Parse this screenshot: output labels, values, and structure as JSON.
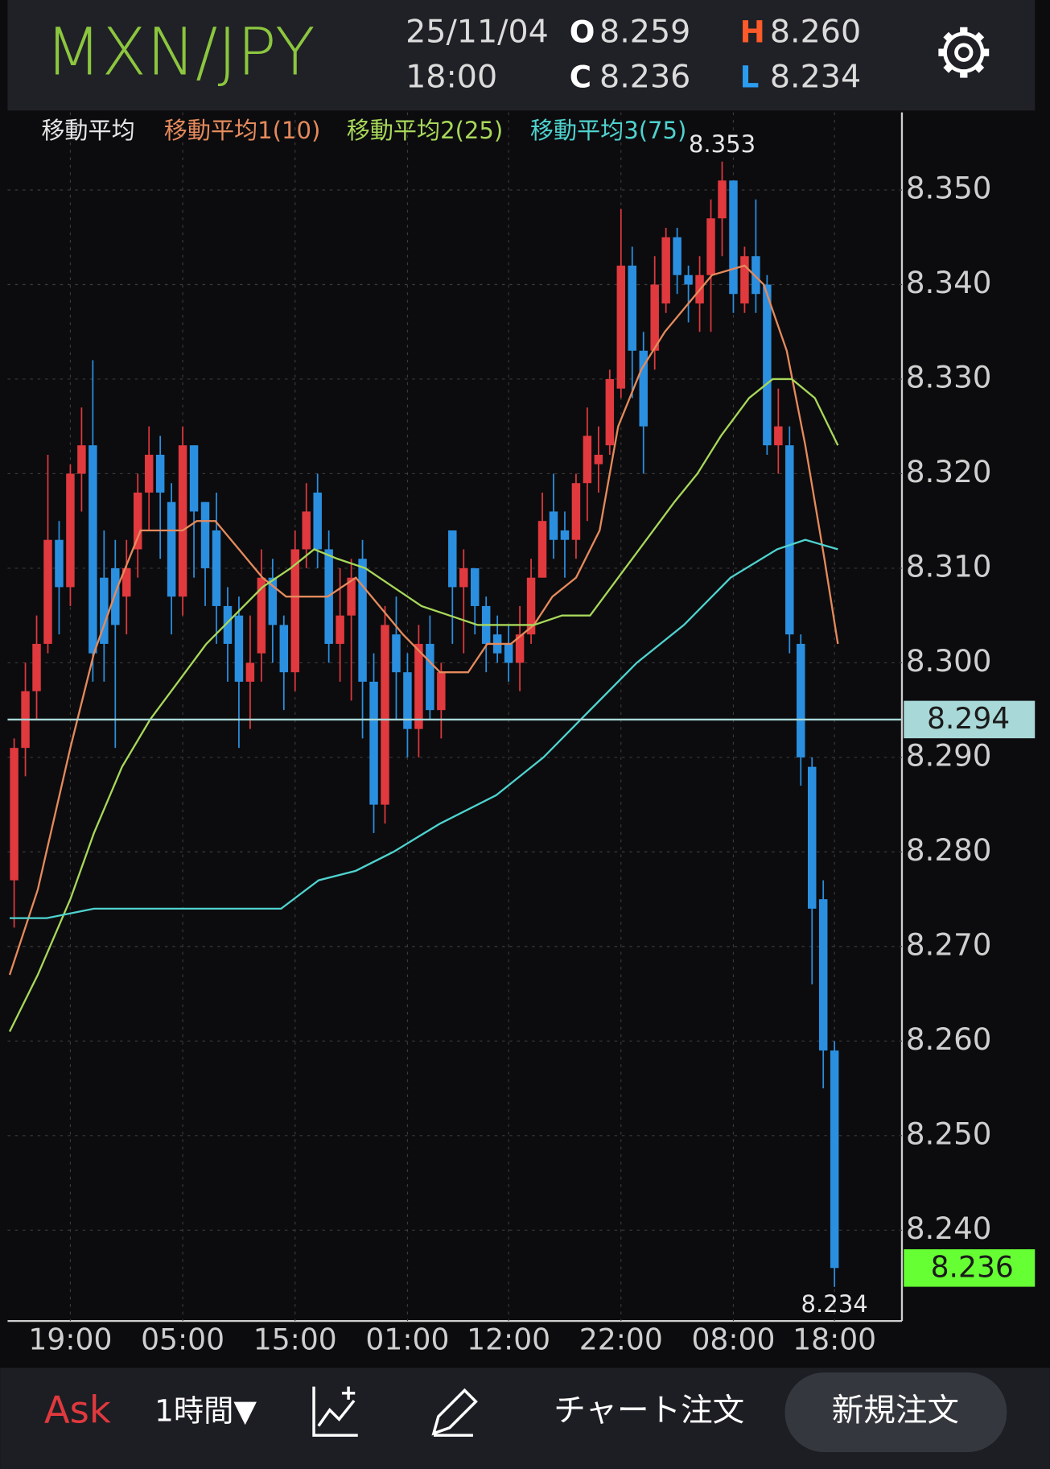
{
  "header": {
    "symbol": "MXN/JPY",
    "date": "25/11/04",
    "time": "18:00",
    "open_label": "O",
    "open": "8.259",
    "high_label": "H",
    "high": "8.260",
    "close_label": "C",
    "close": "8.236",
    "low_label": "L",
    "low": "8.234"
  },
  "chart_data": {
    "type": "candlestick",
    "legend_title": "移動平均",
    "up_color": "#e0393e",
    "down_color": "#2b8fe0",
    "grid": true,
    "categories": [
      null,
      null,
      null,
      null,
      null,
      "19:00",
      null,
      null,
      null,
      null,
      null,
      null,
      null,
      null,
      null,
      "05:00",
      null,
      null,
      null,
      null,
      null,
      null,
      null,
      null,
      null,
      "15:00",
      null,
      null,
      null,
      null,
      null,
      null,
      null,
      null,
      null,
      "01:00",
      null,
      null,
      null,
      null,
      null,
      null,
      null,
      null,
      "12:00",
      null,
      null,
      null,
      null,
      null,
      null,
      null,
      null,
      null,
      "22:00",
      null,
      null,
      null,
      null,
      null,
      null,
      null,
      null,
      null,
      "08:00",
      null,
      null,
      null,
      null,
      null,
      null,
      null,
      null,
      "18:00"
    ],
    "open": [
      8.277,
      8.291,
      8.297,
      8.302,
      8.313,
      8.308,
      8.32,
      8.323,
      8.309,
      8.31,
      8.307,
      8.312,
      8.318,
      8.322,
      8.317,
      8.307,
      8.323,
      8.317,
      8.314,
      8.306,
      8.305,
      8.298,
      8.301,
      8.309,
      8.304,
      8.299,
      8.312,
      8.318,
      8.312,
      8.302,
      8.305,
      8.311,
      8.298,
      8.285,
      8.303,
      8.299,
      8.293,
      8.302,
      8.295,
      8.314,
      8.308,
      8.31,
      8.306,
      8.303,
      8.302,
      8.3,
      8.303,
      8.309,
      8.316,
      8.314,
      8.313,
      8.319,
      8.321,
      8.323,
      8.329,
      8.342,
      8.333,
      8.333,
      8.338,
      8.345,
      8.341,
      8.338,
      8.341,
      8.347,
      8.351,
      8.338,
      8.343,
      8.34,
      8.323,
      8.323,
      8.302,
      8.289,
      8.275,
      8.259
    ],
    "high": [
      8.292,
      8.3,
      8.305,
      8.322,
      8.315,
      8.321,
      8.327,
      8.332,
      8.314,
      8.313,
      8.313,
      8.32,
      8.325,
      8.324,
      8.319,
      8.325,
      8.323,
      8.317,
      8.318,
      8.308,
      8.307,
      8.305,
      8.312,
      8.311,
      8.305,
      8.314,
      8.319,
      8.32,
      8.314,
      8.31,
      8.311,
      8.313,
      8.301,
      8.306,
      8.307,
      8.301,
      8.304,
      8.305,
      8.3,
      8.314,
      8.312,
      8.31,
      8.307,
      8.305,
      8.304,
      8.306,
      8.311,
      8.318,
      8.32,
      8.316,
      8.32,
      8.327,
      8.325,
      8.331,
      8.348,
      8.344,
      8.335,
      8.343,
      8.346,
      8.346,
      8.342,
      8.343,
      8.349,
      8.353,
      8.351,
      8.344,
      8.349,
      8.341,
      8.329,
      8.325,
      8.303,
      8.29,
      8.277,
      8.26
    ],
    "low": [
      8.272,
      8.288,
      8.294,
      8.301,
      8.303,
      8.306,
      8.316,
      8.298,
      8.298,
      8.291,
      8.303,
      8.309,
      8.314,
      8.311,
      8.303,
      8.305,
      8.309,
      8.306,
      8.302,
      8.298,
      8.291,
      8.293,
      8.298,
      8.3,
      8.295,
      8.297,
      8.31,
      8.31,
      8.3,
      8.298,
      8.296,
      8.292,
      8.282,
      8.283,
      8.294,
      8.29,
      8.29,
      8.294,
      8.292,
      8.302,
      8.301,
      8.303,
      8.299,
      8.3,
      8.298,
      8.297,
      8.302,
      8.309,
      8.311,
      8.309,
      8.311,
      8.315,
      8.318,
      8.322,
      8.328,
      8.328,
      8.32,
      8.331,
      8.337,
      8.339,
      8.336,
      8.335,
      8.335,
      8.343,
      8.337,
      8.337,
      8.337,
      8.322,
      8.32,
      8.301,
      8.287,
      8.266,
      8.255,
      8.234
    ],
    "close": [
      8.291,
      8.297,
      8.302,
      8.313,
      8.308,
      8.32,
      8.323,
      8.301,
      8.302,
      8.304,
      8.31,
      8.318,
      8.322,
      8.318,
      8.307,
      8.323,
      8.316,
      8.31,
      8.306,
      8.302,
      8.298,
      8.3,
      8.309,
      8.304,
      8.299,
      8.312,
      8.316,
      8.312,
      8.302,
      8.305,
      8.309,
      8.298,
      8.285,
      8.304,
      8.299,
      8.293,
      8.302,
      8.295,
      8.299,
      8.308,
      8.31,
      8.306,
      8.302,
      8.301,
      8.3,
      8.303,
      8.309,
      8.315,
      8.313,
      8.313,
      8.319,
      8.324,
      8.322,
      8.33,
      8.342,
      8.333,
      8.325,
      8.34,
      8.345,
      8.341,
      8.34,
      8.341,
      8.347,
      8.351,
      8.339,
      8.343,
      8.339,
      8.323,
      8.325,
      8.303,
      8.29,
      8.274,
      8.259,
      8.236
    ],
    "series": [
      {
        "name": "移動平均1(10)",
        "color": "#e58a5c",
        "x": [
          -0.4,
          2.1,
          5,
          7.1,
          9.2,
          11.25,
          12.9,
          15,
          16.25,
          17.9,
          20,
          22.1,
          24.2,
          26.25,
          27.9,
          30.4,
          32.5,
          34.6,
          37.9,
          40.4,
          42.1,
          44.2,
          46.25,
          47.9,
          50,
          52.1,
          53.75,
          55.8,
          57.9,
          60,
          62.1,
          65,
          66.7,
          68.75,
          70.4,
          72.1,
          73.3
        ],
        "values": [
          8.267,
          8.276,
          8.291,
          8.301,
          8.308,
          8.314,
          8.314,
          8.314,
          8.315,
          8.315,
          8.312,
          8.309,
          8.307,
          8.307,
          8.307,
          8.309,
          8.306,
          8.303,
          8.299,
          8.299,
          8.302,
          8.302,
          8.304,
          8.307,
          8.309,
          8.314,
          8.325,
          8.331,
          8.335,
          8.338,
          8.341,
          8.342,
          8.34,
          8.333,
          8.323,
          8.311,
          8.302
        ]
      },
      {
        "name": "移動平均2(25)",
        "color": "#a8d85a",
        "x": [
          -0.4,
          2.1,
          5,
          7.1,
          9.6,
          12.1,
          14.6,
          17.1,
          19.6,
          22.1,
          24.6,
          26.7,
          28.75,
          31.25,
          33.75,
          36.25,
          38.75,
          41.25,
          43.75,
          46.25,
          48.75,
          51.25,
          53.75,
          56.25,
          58.75,
          60.8,
          62.9,
          65.4,
          67.5,
          69.2,
          71.25,
          73.3
        ],
        "values": [
          8.261,
          8.267,
          8.275,
          8.282,
          8.289,
          8.294,
          8.298,
          8.302,
          8.305,
          8.308,
          8.31,
          8.312,
          8.311,
          8.31,
          8.308,
          8.306,
          8.305,
          8.304,
          8.304,
          8.304,
          8.305,
          8.305,
          8.309,
          8.313,
          8.317,
          8.32,
          8.324,
          8.328,
          8.33,
          8.33,
          8.328,
          8.323
        ]
      },
      {
        "name": "移動平均3(75)",
        "color": "#4fd3cf",
        "x": [
          -0.4,
          2.9,
          7.1,
          11.25,
          17.1,
          20.8,
          23.75,
          27.1,
          30.4,
          33.75,
          37.9,
          42.9,
          47.1,
          51.25,
          55.4,
          59.6,
          63.75,
          67.9,
          70.4,
          73.3
        ],
        "values": [
          8.273,
          8.273,
          8.274,
          8.274,
          8.274,
          8.274,
          8.274,
          8.277,
          8.278,
          8.28,
          8.283,
          8.286,
          8.29,
          8.295,
          8.3,
          8.304,
          8.309,
          8.312,
          8.313,
          8.312
        ]
      }
    ],
    "ylim": [
      8.2304,
      8.3582
    ],
    "yticks": [
      {
        "value": 8.24,
        "label": "8.240"
      },
      {
        "value": 8.25,
        "label": "8.250"
      },
      {
        "value": 8.26,
        "label": "8.260"
      },
      {
        "value": 8.27,
        "label": "8.270"
      },
      {
        "value": 8.28,
        "label": "8.280"
      },
      {
        "value": 8.29,
        "label": "8.290"
      },
      {
        "value": 8.3,
        "label": "8.300"
      },
      {
        "value": 8.31,
        "label": "8.310"
      },
      {
        "value": 8.32,
        "label": "8.320"
      },
      {
        "value": 8.33,
        "label": "8.330"
      },
      {
        "value": 8.34,
        "label": "8.340"
      },
      {
        "value": 8.35,
        "label": "8.350"
      }
    ],
    "reference_line": {
      "value": 8.294,
      "label": "8.294",
      "color": "#a9d8d8"
    },
    "current_price": {
      "value": 8.236,
      "label": "8.236",
      "color": "#66ff33"
    },
    "annotations": [
      {
        "index": 63,
        "value": 8.353,
        "label": "8.353",
        "position": "above"
      },
      {
        "index": 73,
        "value": 8.234,
        "label": "8.234",
        "position": "below"
      }
    ]
  },
  "nav": {
    "ask": "Ask",
    "interval": "1時間▼",
    "chart_order": "チャート注文",
    "new_order": "新規注文"
  }
}
